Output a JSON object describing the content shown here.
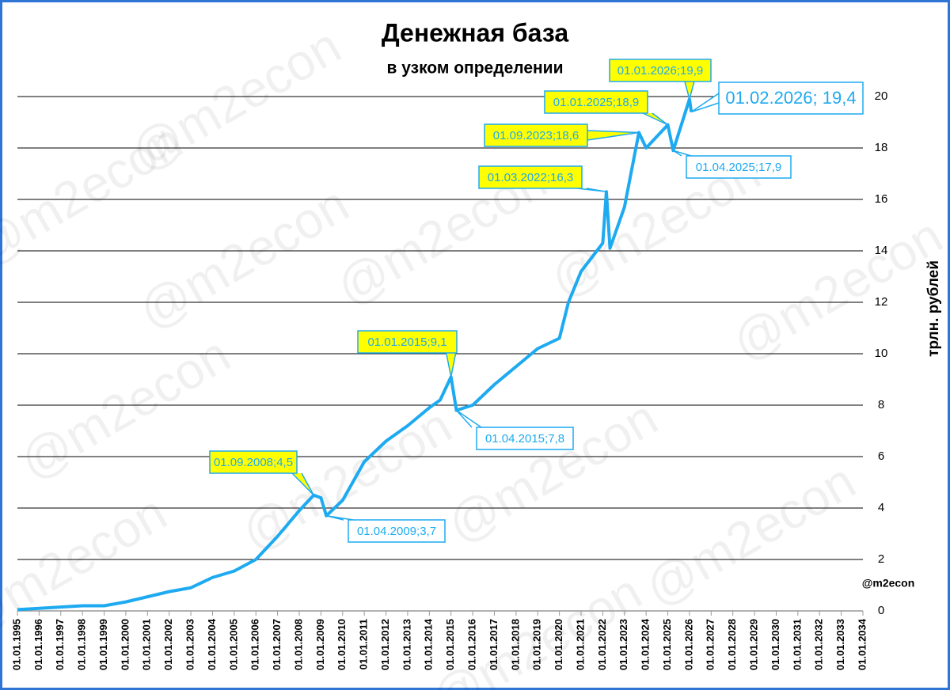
{
  "chart_data": {
    "type": "line",
    "title": "Денежная база",
    "subtitle": "в узком определении",
    "y_axis_label": "трлн. рублей",
    "source": "@m2econ",
    "watermark": "@m2econ",
    "ylim": [
      0,
      20
    ],
    "yticks": [
      0,
      2,
      4,
      6,
      8,
      10,
      12,
      14,
      16,
      18,
      20
    ],
    "xlim": [
      "01.01.1995",
      "01.01.2034"
    ],
    "xticks": [
      "01.01.1995",
      "01.01.1996",
      "01.01.1997",
      "01.01.1998",
      "01.01.1999",
      "01.01.2000",
      "01.01.2001",
      "01.01.2002",
      "01.01.2003",
      "01.01.2004",
      "01.01.2005",
      "01.01.2006",
      "01.01.2007",
      "01.01.2008",
      "01.01.2009",
      "01.01.2010",
      "01.01.2011",
      "01.01.2012",
      "01.01.2013",
      "01.01.2014",
      "01.01.2015",
      "01.01.2016",
      "01.01.2017",
      "01.01.2018",
      "01.01.2019",
      "01.01.2020",
      "01.01.2021",
      "01.01.2022",
      "01.01.2023",
      "01.01.2024",
      "01.01.2025",
      "01.01.2026",
      "01.01.2027",
      "01.01.2028",
      "01.01.2029",
      "01.01.2030",
      "01.01.2031",
      "01.01.2032",
      "01.01.2033",
      "01.01.2034"
    ],
    "grid": true,
    "series": [
      {
        "name": "Денежная база",
        "color": "#1eaaf0",
        "x": [
          "01.01.1995",
          "01.01.1996",
          "01.01.1997",
          "01.01.1998",
          "01.01.1999",
          "01.01.2000",
          "01.01.2001",
          "01.01.2002",
          "01.01.2003",
          "01.01.2004",
          "01.01.2005",
          "01.01.2006",
          "01.01.2007",
          "01.01.2008",
          "01.09.2008",
          "01.01.2009",
          "01.04.2009",
          "01.01.2010",
          "01.01.2011",
          "01.01.2012",
          "01.01.2013",
          "01.01.2014",
          "01.07.2014",
          "01.01.2015",
          "01.04.2015",
          "01.01.2016",
          "01.01.2017",
          "01.01.2018",
          "01.01.2019",
          "01.01.2020",
          "01.06.2020",
          "01.01.2021",
          "01.01.2022",
          "01.03.2022",
          "01.05.2022",
          "01.01.2023",
          "01.09.2023",
          "01.01.2024",
          "01.01.2025",
          "01.04.2025",
          "01.01.2026",
          "01.02.2026"
        ],
        "values": [
          0.05,
          0.1,
          0.15,
          0.2,
          0.2,
          0.35,
          0.55,
          0.75,
          0.9,
          1.3,
          1.55,
          2.0,
          2.9,
          3.9,
          4.5,
          4.4,
          3.7,
          4.3,
          5.8,
          6.6,
          7.2,
          7.9,
          8.2,
          9.1,
          7.8,
          8.0,
          8.8,
          9.5,
          10.2,
          10.6,
          12.0,
          13.2,
          14.3,
          16.3,
          14.1,
          15.7,
          18.6,
          18.0,
          18.9,
          17.9,
          19.9,
          19.4
        ]
      }
    ],
    "annotations": [
      {
        "text": "01.09.2008;4,5",
        "x": "01.09.2008",
        "style": "high"
      },
      {
        "text": "01.04.2009;3,7",
        "x": "01.04.2009",
        "style": "low"
      },
      {
        "text": "01.01.2015;9,1",
        "x": "01.01.2015",
        "style": "high"
      },
      {
        "text": "01.04.2015;7,8",
        "x": "01.04.2015",
        "style": "low"
      },
      {
        "text": "01.03.2022;16,3",
        "x": "01.03.2022",
        "style": "high"
      },
      {
        "text": "01.09.2023;18,6",
        "x": "01.09.2023",
        "style": "high"
      },
      {
        "text": "01.01.2025;18,9",
        "x": "01.01.2025",
        "style": "high"
      },
      {
        "text": "01.04.2025;17,9",
        "x": "01.04.2025",
        "style": "low"
      },
      {
        "text": "01.01.2026;19,9",
        "x": "01.01.2026",
        "style": "high"
      },
      {
        "text": "01.02.2026; 19,4",
        "x": "01.02.2026",
        "style": "last"
      }
    ]
  }
}
